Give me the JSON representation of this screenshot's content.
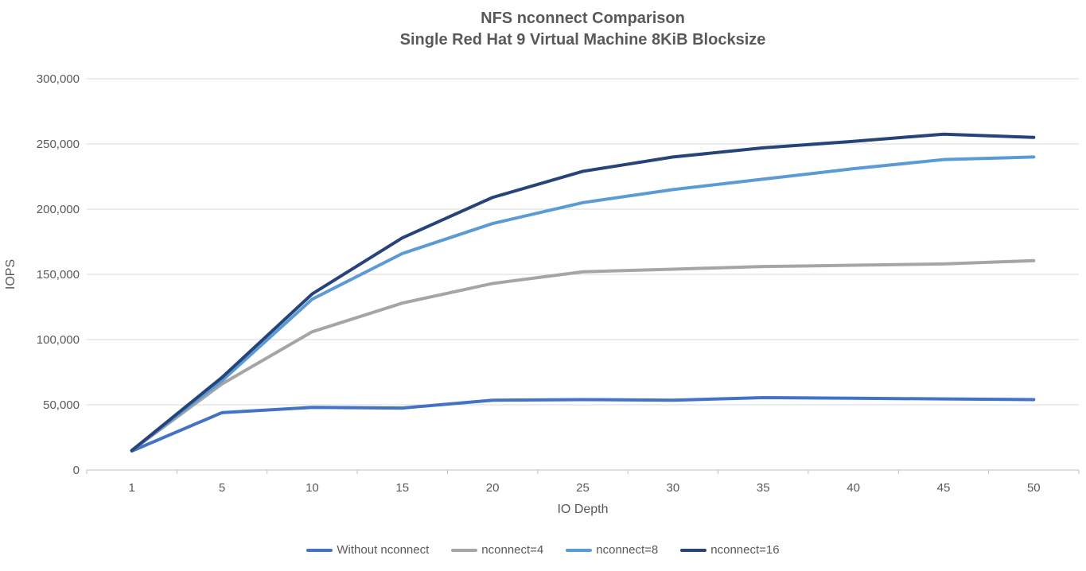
{
  "title": {
    "line1": "NFS nconnect Comparison",
    "line2": "Single Red Hat 9 Virtual Machine 8KiB Blocksize"
  },
  "chart_data": {
    "type": "line",
    "x": [
      1,
      5,
      10,
      15,
      20,
      25,
      30,
      35,
      40,
      45,
      50
    ],
    "xlabel": "IO Depth",
    "ylabel": "IOPS",
    "ylim": [
      0,
      300000
    ],
    "ytick_interval": 50000,
    "ytick_labels": [
      "0",
      "50,000",
      "100,000",
      "150,000",
      "200,000",
      "250,000",
      "300,000"
    ],
    "grid": true,
    "legend_position": "bottom",
    "series": [
      {
        "name": "Without nconnect",
        "color": "#4472C4",
        "values": [
          14500,
          44000,
          48000,
          47500,
          53500,
          54000,
          53500,
          55500,
          55000,
          54500,
          54000
        ]
      },
      {
        "name": "nconnect=4",
        "color": "#A5A5A5",
        "values": [
          15000,
          66000,
          106000,
          128000,
          143000,
          152000,
          154000,
          156000,
          157000,
          158000,
          160500
        ]
      },
      {
        "name": "nconnect=8",
        "color": "#5B9BD5",
        "values": [
          15000,
          68500,
          131000,
          166000,
          189000,
          205000,
          215000,
          223000,
          231000,
          238000,
          240000
        ]
      },
      {
        "name": "nconnect=16",
        "color": "#264478",
        "values": [
          15000,
          71000,
          135000,
          178000,
          209000,
          229000,
          240000,
          247000,
          252000,
          257500,
          255000
        ]
      }
    ]
  },
  "colors": {
    "text": "#595959",
    "gridline": "#D9D9D9",
    "axis": "#BFBFBF"
  }
}
